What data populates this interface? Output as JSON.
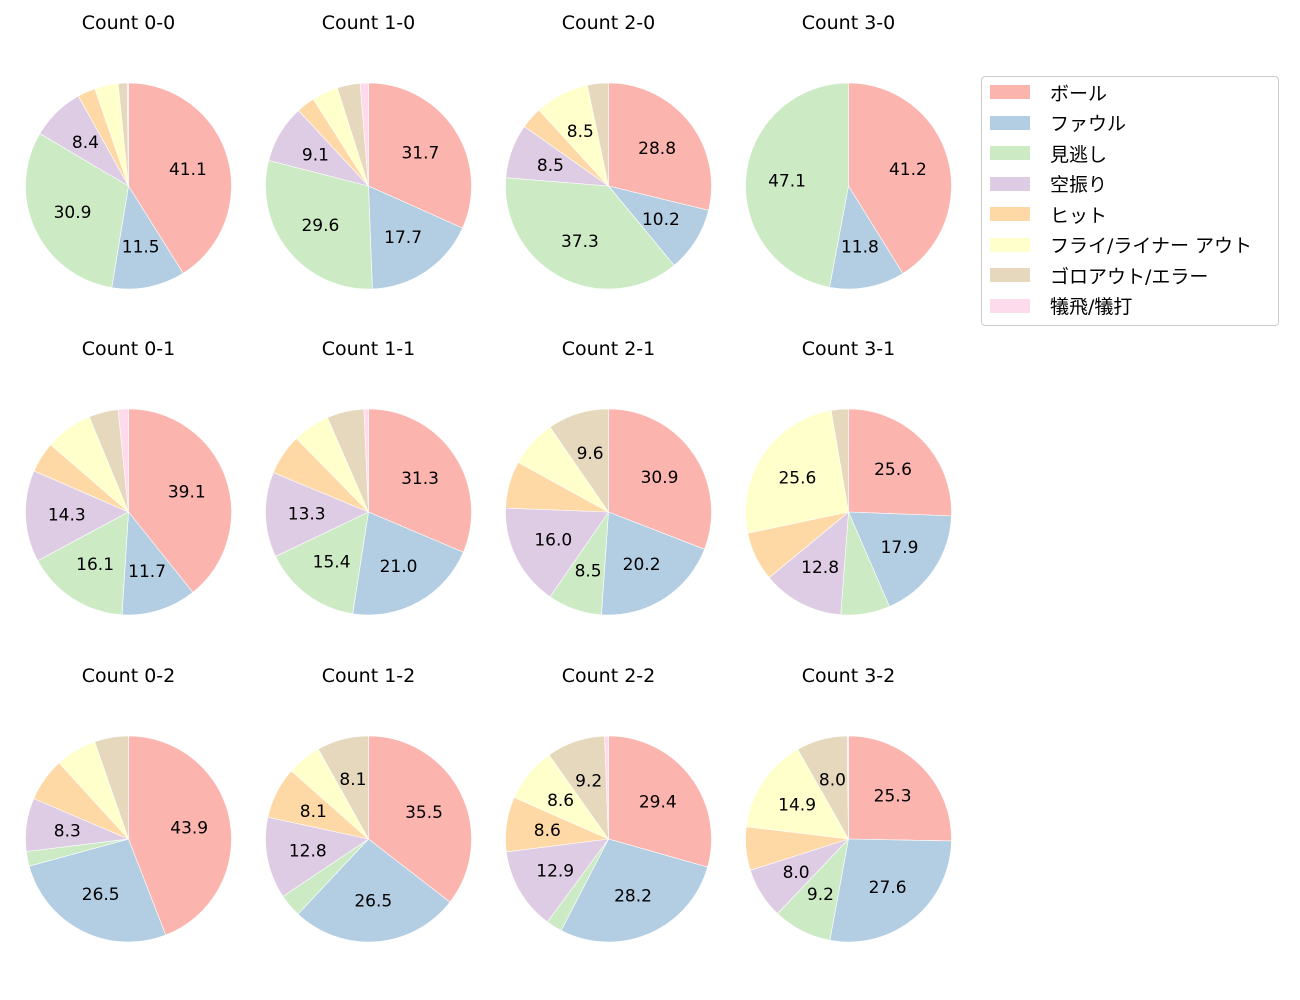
{
  "legend": {
    "entries": [
      {
        "label": "ボール",
        "color": "#fbb4ae"
      },
      {
        "label": "ファウル",
        "color": "#b3cde3"
      },
      {
        "label": "見逃し",
        "color": "#ccebc5"
      },
      {
        "label": "空振り",
        "color": "#decbe4"
      },
      {
        "label": "ヒット",
        "color": "#fed9a6"
      },
      {
        "label": "フライ/ライナー アウト",
        "color": "#ffffcc"
      },
      {
        "label": "ゴロアウト/エラー",
        "color": "#e5d8bd"
      },
      {
        "label": "犠飛/犠打",
        "color": "#fddaec"
      }
    ]
  },
  "chart_data": [
    {
      "type": "pie",
      "title": "Count 0-0",
      "values": [
        41.1,
        11.5,
        30.9,
        8.4,
        2.8,
        3.7,
        1.4,
        0.2
      ],
      "labels": [
        "41.1",
        "11.5",
        "30.9",
        "8.4",
        "",
        "",
        "",
        ""
      ]
    },
    {
      "type": "pie",
      "title": "Count 1-0",
      "values": [
        31.7,
        17.7,
        29.6,
        9.1,
        2.9,
        4.1,
        3.6,
        1.3
      ],
      "labels": [
        "31.7",
        "17.7",
        "29.6",
        "9.1",
        "",
        "",
        "",
        ""
      ]
    },
    {
      "type": "pie",
      "title": "Count 2-0",
      "values": [
        28.8,
        10.2,
        37.3,
        8.5,
        3.4,
        8.5,
        3.3,
        0.0
      ],
      "labels": [
        "28.8",
        "10.2",
        "37.3",
        "8.5",
        "",
        "8.5",
        "",
        ""
      ]
    },
    {
      "type": "pie",
      "title": "Count 3-0",
      "values": [
        41.2,
        11.8,
        47.1,
        0,
        0,
        0,
        0,
        0
      ],
      "labels": [
        "41.2",
        "11.8",
        "47.1",
        "",
        "",
        "",
        "",
        ""
      ]
    },
    {
      "type": "pie",
      "title": "Count 0-1",
      "values": [
        39.1,
        11.7,
        16.1,
        14.3,
        4.8,
        7.4,
        4.6,
        1.6
      ],
      "labels": [
        "39.1",
        "11.7",
        "16.1",
        "14.3",
        "",
        "",
        "",
        ""
      ]
    },
    {
      "type": "pie",
      "title": "Count 1-1",
      "values": [
        31.3,
        21.0,
        15.4,
        13.3,
        6.4,
        5.8,
        5.8,
        0.7
      ],
      "labels": [
        "31.3",
        "21.0",
        "15.4",
        "13.3",
        "",
        "",
        "",
        ""
      ]
    },
    {
      "type": "pie",
      "title": "Count 2-1",
      "values": [
        30.9,
        20.2,
        8.5,
        16.0,
        7.4,
        7.4,
        9.6,
        0
      ],
      "labels": [
        "30.9",
        "20.2",
        "8.5",
        "16.0",
        "",
        "",
        "9.6",
        ""
      ]
    },
    {
      "type": "pie",
      "title": "Count 3-1",
      "values": [
        25.6,
        17.9,
        7.7,
        12.8,
        7.7,
        25.6,
        2.7,
        0
      ],
      "labels": [
        "25.6",
        "17.9",
        "",
        "12.8",
        "",
        "25.6",
        "",
        ""
      ]
    },
    {
      "type": "pie",
      "title": "Count 0-2",
      "values": [
        43.9,
        26.5,
        2.3,
        8.3,
        6.8,
        6.4,
        5.3,
        0
      ],
      "labels": [
        "43.9",
        "26.5",
        "",
        "8.3",
        "",
        "",
        "",
        ""
      ]
    },
    {
      "type": "pie",
      "title": "Count 1-2",
      "values": [
        35.5,
        26.5,
        3.6,
        12.8,
        8.1,
        5.4,
        8.1,
        0
      ],
      "labels": [
        "35.5",
        "26.5",
        "",
        "12.8",
        "8.1",
        "",
        "8.1",
        ""
      ]
    },
    {
      "type": "pie",
      "title": "Count 2-2",
      "values": [
        29.4,
        28.2,
        2.5,
        12.9,
        8.6,
        8.6,
        9.2,
        0.6
      ],
      "labels": [
        "29.4",
        "28.2",
        "",
        "12.9",
        "8.6",
        "8.6",
        "9.2",
        ""
      ]
    },
    {
      "type": "pie",
      "title": "Count 3-2",
      "values": [
        25.3,
        27.6,
        9.2,
        8.0,
        6.8,
        14.9,
        8.0,
        0.2
      ],
      "labels": [
        "25.3",
        "27.6",
        "9.2",
        "8.0",
        "",
        "14.9",
        "8.0",
        ""
      ]
    }
  ]
}
